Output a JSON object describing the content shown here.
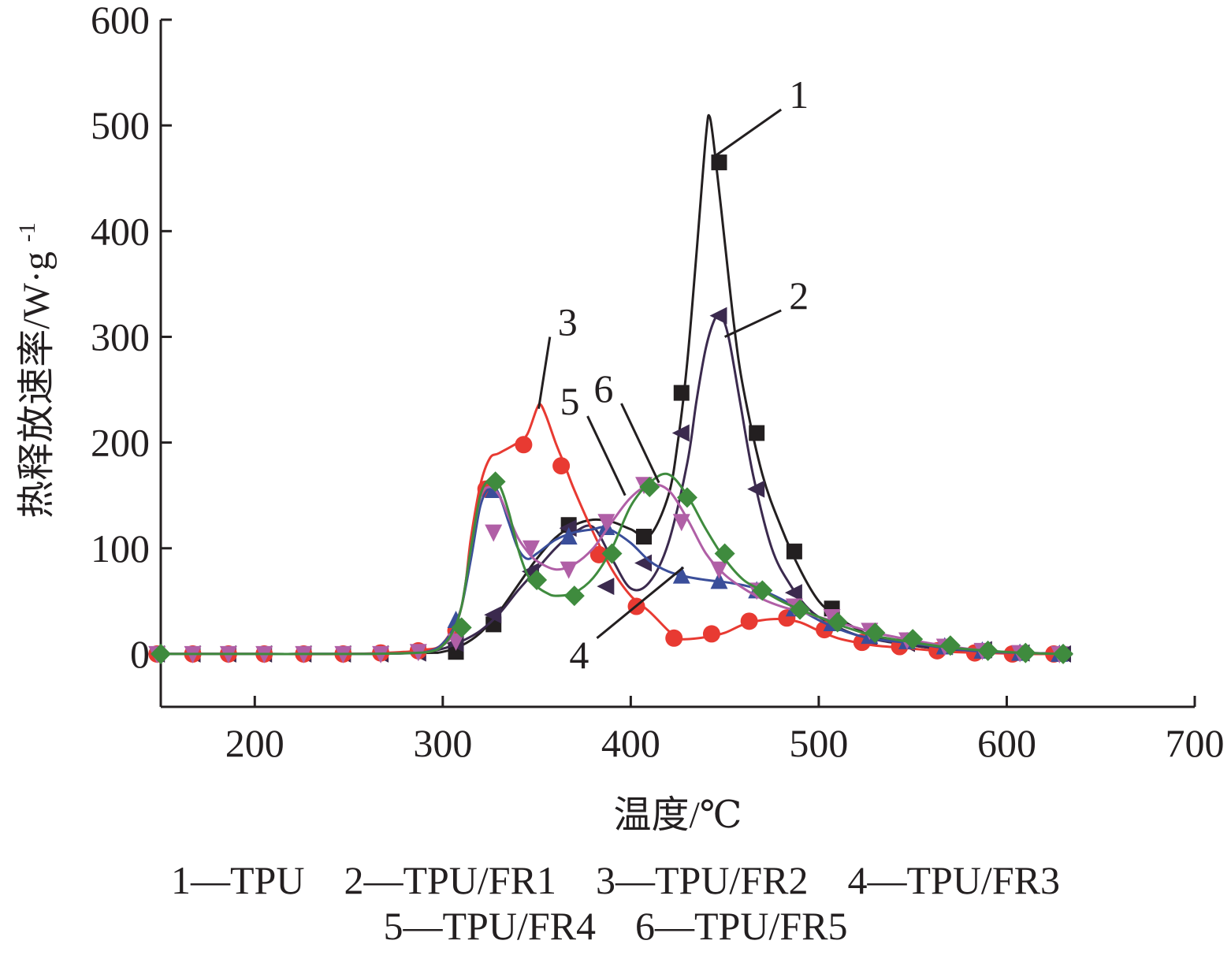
{
  "chart_data": {
    "type": "line",
    "xlabel": "温度/℃",
    "ylabel": "热释放速率/W·g",
    "ylabel_sup": "-1",
    "xlim": [
      150,
      700
    ],
    "ylim": [
      -50,
      600
    ],
    "xticks": [
      200,
      300,
      400,
      500,
      600,
      700
    ],
    "yticks": [
      0,
      100,
      200,
      300,
      400,
      500,
      600
    ],
    "xtick_labels": [
      "200",
      "300",
      "400",
      "500",
      "600",
      "700"
    ],
    "ytick_labels": [
      "0",
      "100",
      "200",
      "300",
      "400",
      "500",
      "600"
    ],
    "grid": false,
    "legend_lines": [
      "1—TPU    2—TPU/FR1    3—TPU/FR2    4—TPU/FR3",
      "5—TPU/FR4    6—TPU/FR5"
    ],
    "series": [
      {
        "name": "1",
        "label": "1—TPU",
        "color": "#231f20",
        "marker": "square",
        "x": [
          150,
          200,
          250,
          290,
          300,
          310,
          320,
          330,
          340,
          350,
          360,
          370,
          380,
          390,
          400,
          410,
          420,
          425,
          430,
          435,
          440,
          442,
          445,
          450,
          455,
          460,
          470,
          480,
          490,
          500,
          510,
          520,
          530,
          550,
          570,
          590,
          610,
          635
        ],
        "y": [
          0,
          0,
          0,
          1,
          2,
          8,
          20,
          40,
          65,
          90,
          110,
          122,
          127,
          125,
          118,
          112,
          150,
          200,
          275,
          380,
          490,
          508,
          470,
          390,
          310,
          250,
          170,
          120,
          80,
          50,
          35,
          24,
          16,
          8,
          4,
          2,
          1,
          0
        ],
        "markers_x": [
          307,
          327,
          367,
          407,
          427,
          447,
          467,
          487,
          507
        ],
        "markers_y": [
          2,
          28,
          122,
          111,
          247,
          465,
          209,
          97,
          43
        ]
      },
      {
        "name": "2",
        "label": "2—TPU/FR1",
        "color": "#3b2a4e",
        "marker": "triangle-left",
        "x": [
          150,
          200,
          250,
          285,
          300,
          310,
          320,
          330,
          340,
          350,
          360,
          370,
          380,
          390,
          400,
          410,
          420,
          430,
          435,
          440,
          445,
          448,
          452,
          458,
          465,
          475,
          485,
          495,
          505,
          520,
          535,
          550,
          570,
          590,
          610,
          635
        ],
        "y": [
          0,
          0,
          0,
          1,
          5,
          12,
          22,
          38,
          60,
          80,
          100,
          115,
          120,
          90,
          62,
          68,
          105,
          180,
          240,
          290,
          318,
          320,
          300,
          240,
          170,
          100,
          65,
          42,
          30,
          18,
          12,
          8,
          4,
          2,
          1,
          0
        ],
        "markers_x": [
          148,
          167,
          186,
          205,
          226,
          247,
          267,
          287,
          307,
          327,
          347,
          367,
          387,
          407,
          427,
          447,
          467,
          487,
          507,
          527,
          547,
          567,
          588,
          608,
          630
        ],
        "markers_y": [
          0,
          0,
          0,
          0,
          0,
          0,
          0,
          1,
          10,
          37,
          78,
          119,
          64,
          86,
          209,
          320,
          156,
          58,
          31,
          15,
          10,
          7,
          4,
          1,
          0
        ]
      },
      {
        "name": "3",
        "label": "3—TPU/FR2",
        "color": "#e83a32",
        "marker": "circle",
        "x": [
          150,
          200,
          250,
          280,
          290,
          300,
          310,
          315,
          320,
          325,
          330,
          340,
          345,
          350,
          352,
          355,
          360,
          365,
          370,
          380,
          390,
          400,
          410,
          420,
          425,
          430,
          440,
          450,
          460,
          470,
          480,
          490,
          500,
          510,
          520,
          530,
          550,
          570,
          590,
          610,
          630
        ],
        "y": [
          0,
          0,
          0,
          2,
          4,
          10,
          45,
          110,
          160,
          185,
          190,
          200,
          208,
          232,
          236,
          225,
          200,
          178,
          155,
          115,
          80,
          55,
          40,
          22,
          15,
          14,
          16,
          20,
          28,
          32,
          33,
          30,
          22,
          15,
          11,
          8,
          5,
          2,
          1,
          0,
          0
        ],
        "markers_x": [
          148,
          167,
          186,
          205,
          226,
          247,
          267,
          287,
          307,
          323,
          343,
          363,
          383,
          403,
          423,
          443,
          463,
          483,
          503,
          523,
          543,
          563,
          583,
          603,
          625
        ],
        "markers_y": [
          0,
          0,
          0,
          0,
          0,
          0,
          1,
          3,
          22,
          156,
          198,
          178,
          94,
          45,
          15,
          19,
          31,
          34,
          23,
          11,
          7,
          3,
          1,
          0,
          0
        ]
      },
      {
        "name": "4",
        "label": "4—TPU/FR3",
        "color": "#3a4e9a",
        "marker": "triangle-up",
        "x": [
          150,
          200,
          250,
          285,
          295,
          300,
          305,
          310,
          315,
          320,
          325,
          330,
          335,
          340,
          345,
          350,
          360,
          370,
          380,
          385,
          390,
          400,
          410,
          420,
          430,
          440,
          450,
          460,
          470,
          480,
          490,
          500,
          510,
          520,
          530,
          550,
          570,
          590,
          610,
          630
        ],
        "y": [
          0,
          0,
          0,
          1,
          4,
          10,
          22,
          45,
          90,
          140,
          157,
          150,
          125,
          100,
          90,
          95,
          108,
          115,
          118,
          120,
          117,
          105,
          88,
          78,
          73,
          70,
          68,
          65,
          60,
          52,
          42,
          32,
          24,
          18,
          14,
          10,
          5,
          2,
          1,
          0
        ],
        "markers_x": [
          307,
          327,
          367,
          387,
          427,
          447,
          467,
          487,
          507,
          527,
          547,
          567,
          587,
          607,
          628
        ],
        "markers_y": [
          32,
          155,
          111,
          120,
          74,
          69,
          60,
          43,
          29,
          17,
          12,
          7,
          3,
          1,
          0
        ]
      },
      {
        "name": "5",
        "label": "5—TPU/FR4",
        "color": "#b05fa6",
        "marker": "triangle-down",
        "x": [
          150,
          200,
          250,
          285,
          295,
          300,
          305,
          310,
          315,
          320,
          325,
          330,
          335,
          340,
          345,
          350,
          360,
          370,
          380,
          390,
          400,
          410,
          420,
          430,
          440,
          450,
          460,
          470,
          480,
          490,
          500,
          510,
          520,
          530,
          550,
          570,
          590,
          610,
          630
        ],
        "y": [
          0,
          0,
          0,
          1,
          3,
          8,
          18,
          45,
          100,
          148,
          158,
          150,
          130,
          110,
          97,
          88,
          80,
          85,
          100,
          125,
          148,
          160,
          155,
          128,
          95,
          75,
          62,
          52,
          45,
          40,
          35,
          30,
          25,
          20,
          13,
          7,
          3,
          1,
          0
        ],
        "markers_x": [
          148,
          167,
          186,
          205,
          226,
          247,
          267,
          287,
          307,
          327,
          347,
          367,
          387,
          407,
          427,
          447,
          467,
          487,
          507,
          527,
          547,
          567,
          587,
          607,
          628
        ],
        "markers_y": [
          0,
          0,
          0,
          0,
          0,
          0,
          0,
          2,
          12,
          115,
          100,
          80,
          125,
          160,
          125,
          80,
          60,
          45,
          35,
          22,
          13,
          7,
          3,
          1,
          0
        ]
      },
      {
        "name": "6",
        "label": "6—TPU/FR5",
        "color": "#3f8b3e",
        "marker": "diamond",
        "x": [
          150,
          200,
          250,
          285,
          295,
          300,
          305,
          310,
          315,
          320,
          325,
          330,
          335,
          340,
          345,
          350,
          355,
          360,
          370,
          380,
          390,
          400,
          410,
          420,
          430,
          440,
          450,
          460,
          470,
          480,
          490,
          500,
          510,
          520,
          530,
          550,
          570,
          590,
          610,
          630
        ],
        "y": [
          0,
          0,
          0,
          1,
          3,
          8,
          20,
          45,
          100,
          150,
          165,
          160,
          135,
          100,
          75,
          64,
          58,
          55,
          58,
          72,
          100,
          140,
          162,
          170,
          150,
          118,
          90,
          70,
          60,
          50,
          42,
          35,
          28,
          22,
          17,
          11,
          6,
          3,
          1,
          0
        ],
        "markers_x": [
          150,
          310,
          328,
          350,
          370,
          390,
          410,
          430,
          450,
          470,
          490,
          510,
          530,
          550,
          570,
          590,
          610,
          630
        ],
        "markers_y": [
          0,
          25,
          163,
          70,
          55,
          95,
          158,
          148,
          95,
          60,
          42,
          30,
          20,
          14,
          8,
          3,
          1,
          0
        ]
      }
    ],
    "callouts": [
      {
        "text": "1",
        "anchor": [
          444,
          470
        ],
        "label_at": [
          480,
          515
        ]
      },
      {
        "text": "2",
        "anchor": [
          450,
          300
        ],
        "label_at": [
          480,
          325
        ]
      },
      {
        "text": "3",
        "anchor": [
          351,
          232
        ],
        "label_at": [
          357,
          300
        ]
      },
      {
        "text": "4",
        "anchor": [
          428,
          82
        ],
        "label_at": [
          382,
          15
        ]
      },
      {
        "text": "5",
        "anchor": [
          397,
          150
        ],
        "label_at": [
          377,
          225
        ]
      },
      {
        "text": "6",
        "anchor": [
          415,
          162
        ],
        "label_at": [
          395,
          237
        ]
      }
    ]
  }
}
